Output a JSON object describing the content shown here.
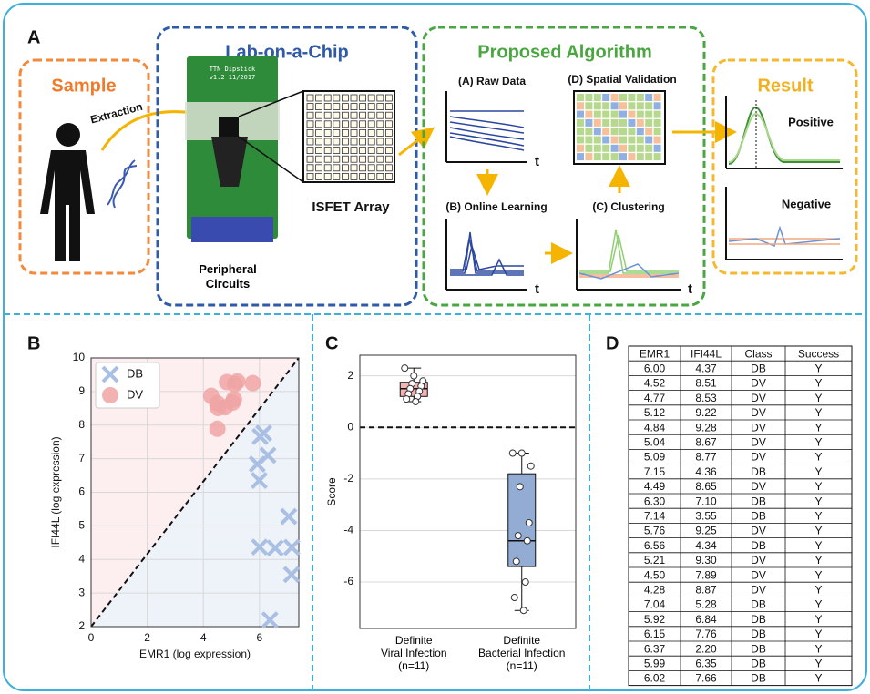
{
  "panel_a": {
    "label": "A",
    "sample": {
      "title": "Sample",
      "step": "Extraction"
    },
    "chip": {
      "title": "Lab-on-a-Chip",
      "board": "TTN Dipstick\nv1.2 11/2017",
      "array": "ISFET Array",
      "circuits": "Peripheral\nCircuits"
    },
    "algorithm": {
      "title": "Proposed Algorithm",
      "raw": "(A) Raw Data",
      "online": "(B) Online Learning",
      "clustering": "(C) Clustering",
      "validation": "(D) Spatial Validation",
      "axis": "t"
    },
    "result": {
      "title": "Result",
      "positive": "Positive",
      "negative": "Negative"
    }
  },
  "chart_data": [
    {
      "type": "scatter",
      "label": "B",
      "xlabel": "EMR1 (log expression)",
      "ylabel": "IFI44L (log expression)",
      "xlim": [
        0,
        7.4
      ],
      "ylim": [
        2,
        10
      ],
      "xticks": [
        0,
        2,
        4,
        6
      ],
      "yticks": [
        2,
        3,
        4,
        5,
        6,
        7,
        8,
        9,
        10
      ],
      "grid": true,
      "legend": "upper left",
      "series": [
        {
          "name": "DB",
          "color": "#a9bfe3",
          "marker": "x",
          "x": [
            6.0,
            7.15,
            6.3,
            7.14,
            6.56,
            7.04,
            5.92,
            6.15,
            6.37,
            5.99,
            6.02
          ],
          "values": [
            4.37,
            4.36,
            7.1,
            3.55,
            4.34,
            5.28,
            6.84,
            7.76,
            2.2,
            6.35,
            7.66
          ]
        },
        {
          "name": "DV",
          "color": "#f0a4a4",
          "marker": "o",
          "x": [
            4.52,
            4.77,
            5.12,
            4.84,
            5.04,
            5.09,
            4.49,
            5.76,
            5.21,
            4.5,
            4.28
          ],
          "values": [
            8.51,
            8.53,
            9.22,
            9.28,
            8.67,
            8.77,
            8.65,
            9.25,
            9.3,
            7.89,
            8.87
          ]
        }
      ]
    },
    {
      "type": "box",
      "label": "C",
      "ylabel": "Score",
      "categories": [
        "Definite\nViral Infection\n(n=11)",
        "Definite\nBacterial Infection\n(n=11)"
      ],
      "ylim": [
        -7.8,
        2.8
      ],
      "yticks": [
        -6,
        -4,
        -2,
        0,
        2
      ],
      "grid": true,
      "boxes": [
        {
          "color": "#f4b4b4",
          "whislo": 1.0,
          "q1": 1.2,
          "med": 1.5,
          "q3": 1.75,
          "whishi": 2.3,
          "points": [
            2.3,
            2.0,
            1.8,
            1.7,
            1.6,
            1.5,
            1.4,
            1.3,
            1.2,
            1.1,
            1.0
          ]
        },
        {
          "color": "#93acd3",
          "whislo": -7.1,
          "q1": -5.4,
          "med": -4.4,
          "q3": -1.8,
          "whishi": -1.0,
          "points": [
            -1.0,
            -1.0,
            -1.5,
            -2.3,
            -3.7,
            -4.2,
            -4.4,
            -5.2,
            -6.0,
            -6.6,
            -7.1
          ]
        }
      ]
    }
  ],
  "table": {
    "label": "D",
    "header": [
      "EMR1",
      "IFI44L",
      "Class",
      "Success"
    ],
    "rows": [
      [
        "6.00",
        "4.37",
        "DB",
        "Y"
      ],
      [
        "4.52",
        "8.51",
        "DV",
        "Y"
      ],
      [
        "4.77",
        "8.53",
        "DV",
        "Y"
      ],
      [
        "5.12",
        "9.22",
        "DV",
        "Y"
      ],
      [
        "4.84",
        "9.28",
        "DV",
        "Y"
      ],
      [
        "5.04",
        "8.67",
        "DV",
        "Y"
      ],
      [
        "5.09",
        "8.77",
        "DV",
        "Y"
      ],
      [
        "7.15",
        "4.36",
        "DB",
        "Y"
      ],
      [
        "4.49",
        "8.65",
        "DV",
        "Y"
      ],
      [
        "6.30",
        "7.10",
        "DB",
        "Y"
      ],
      [
        "7.14",
        "3.55",
        "DB",
        "Y"
      ],
      [
        "5.76",
        "9.25",
        "DV",
        "Y"
      ],
      [
        "6.56",
        "4.34",
        "DB",
        "Y"
      ],
      [
        "5.21",
        "9.30",
        "DV",
        "Y"
      ],
      [
        "4.50",
        "7.89",
        "DV",
        "Y"
      ],
      [
        "4.28",
        "8.87",
        "DV",
        "Y"
      ],
      [
        "7.04",
        "5.28",
        "DB",
        "Y"
      ],
      [
        "5.92",
        "6.84",
        "DB",
        "Y"
      ],
      [
        "6.15",
        "7.76",
        "DB",
        "Y"
      ],
      [
        "6.37",
        "2.20",
        "DB",
        "Y"
      ],
      [
        "5.99",
        "6.35",
        "DB",
        "Y"
      ],
      [
        "6.02",
        "7.66",
        "DB",
        "Y"
      ]
    ]
  }
}
